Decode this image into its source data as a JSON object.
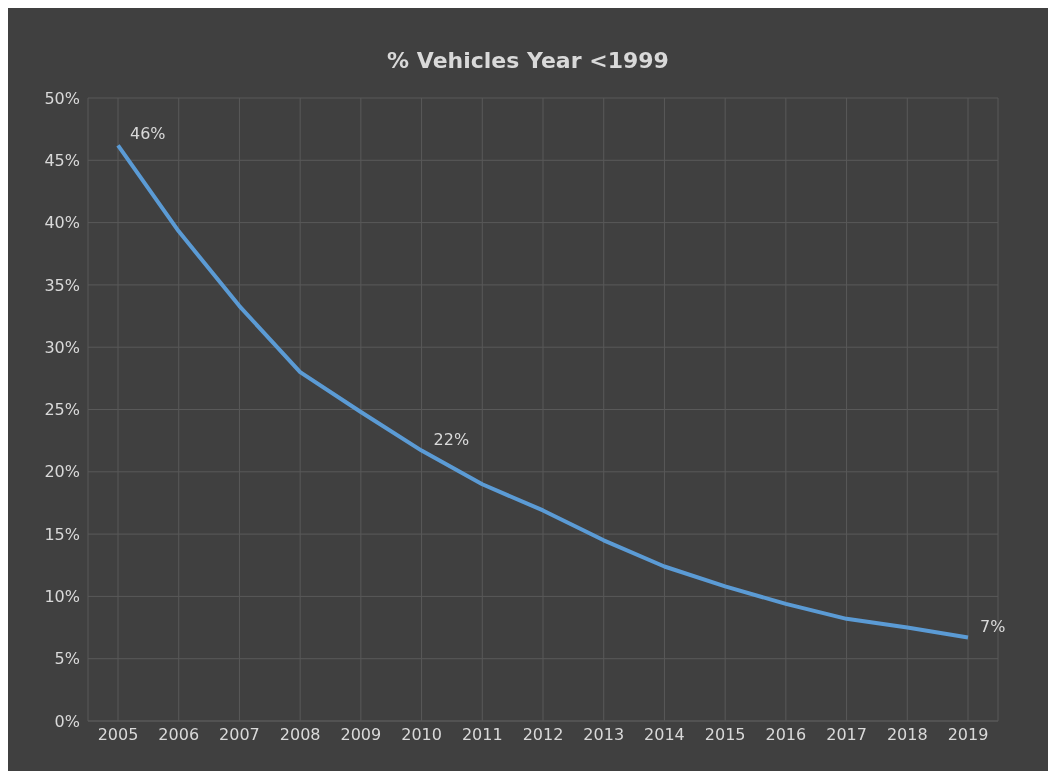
{
  "chart_data": {
    "type": "line",
    "title": "% Vehicles Year <1999",
    "categories": [
      "2005",
      "2006",
      "2007",
      "2008",
      "2009",
      "2010",
      "2011",
      "2012",
      "2013",
      "2014",
      "2015",
      "2016",
      "2017",
      "2018",
      "2019"
    ],
    "series": [
      {
        "color": "#5b9bd5",
        "values": [
          46.2,
          39.3,
          33.3,
          28.0,
          24.8,
          21.7,
          19.0,
          16.9,
          14.5,
          12.4,
          10.8,
          9.4,
          8.2,
          7.5,
          6.7
        ],
        "value_labels": [
          "46%",
          null,
          null,
          null,
          null,
          "22%",
          null,
          null,
          null,
          null,
          null,
          null,
          null,
          null,
          "7%"
        ]
      }
    ],
    "ylim": [
      0,
      50
    ],
    "yticks": [
      {
        "value": 0,
        "label": "0%"
      },
      {
        "value": 5,
        "label": "5%"
      },
      {
        "value": 10,
        "label": "10%"
      },
      {
        "value": 15,
        "label": "15%"
      },
      {
        "value": 20,
        "label": "20%"
      },
      {
        "value": 25,
        "label": "25%"
      },
      {
        "value": 30,
        "label": "30%"
      },
      {
        "value": 35,
        "label": "35%"
      },
      {
        "value": 40,
        "label": "40%"
      },
      {
        "value": 45,
        "label": "45%"
      },
      {
        "value": 50,
        "label": "50%"
      }
    ],
    "grid": true,
    "marker": "none",
    "line_style": "solid",
    "legend": false
  }
}
